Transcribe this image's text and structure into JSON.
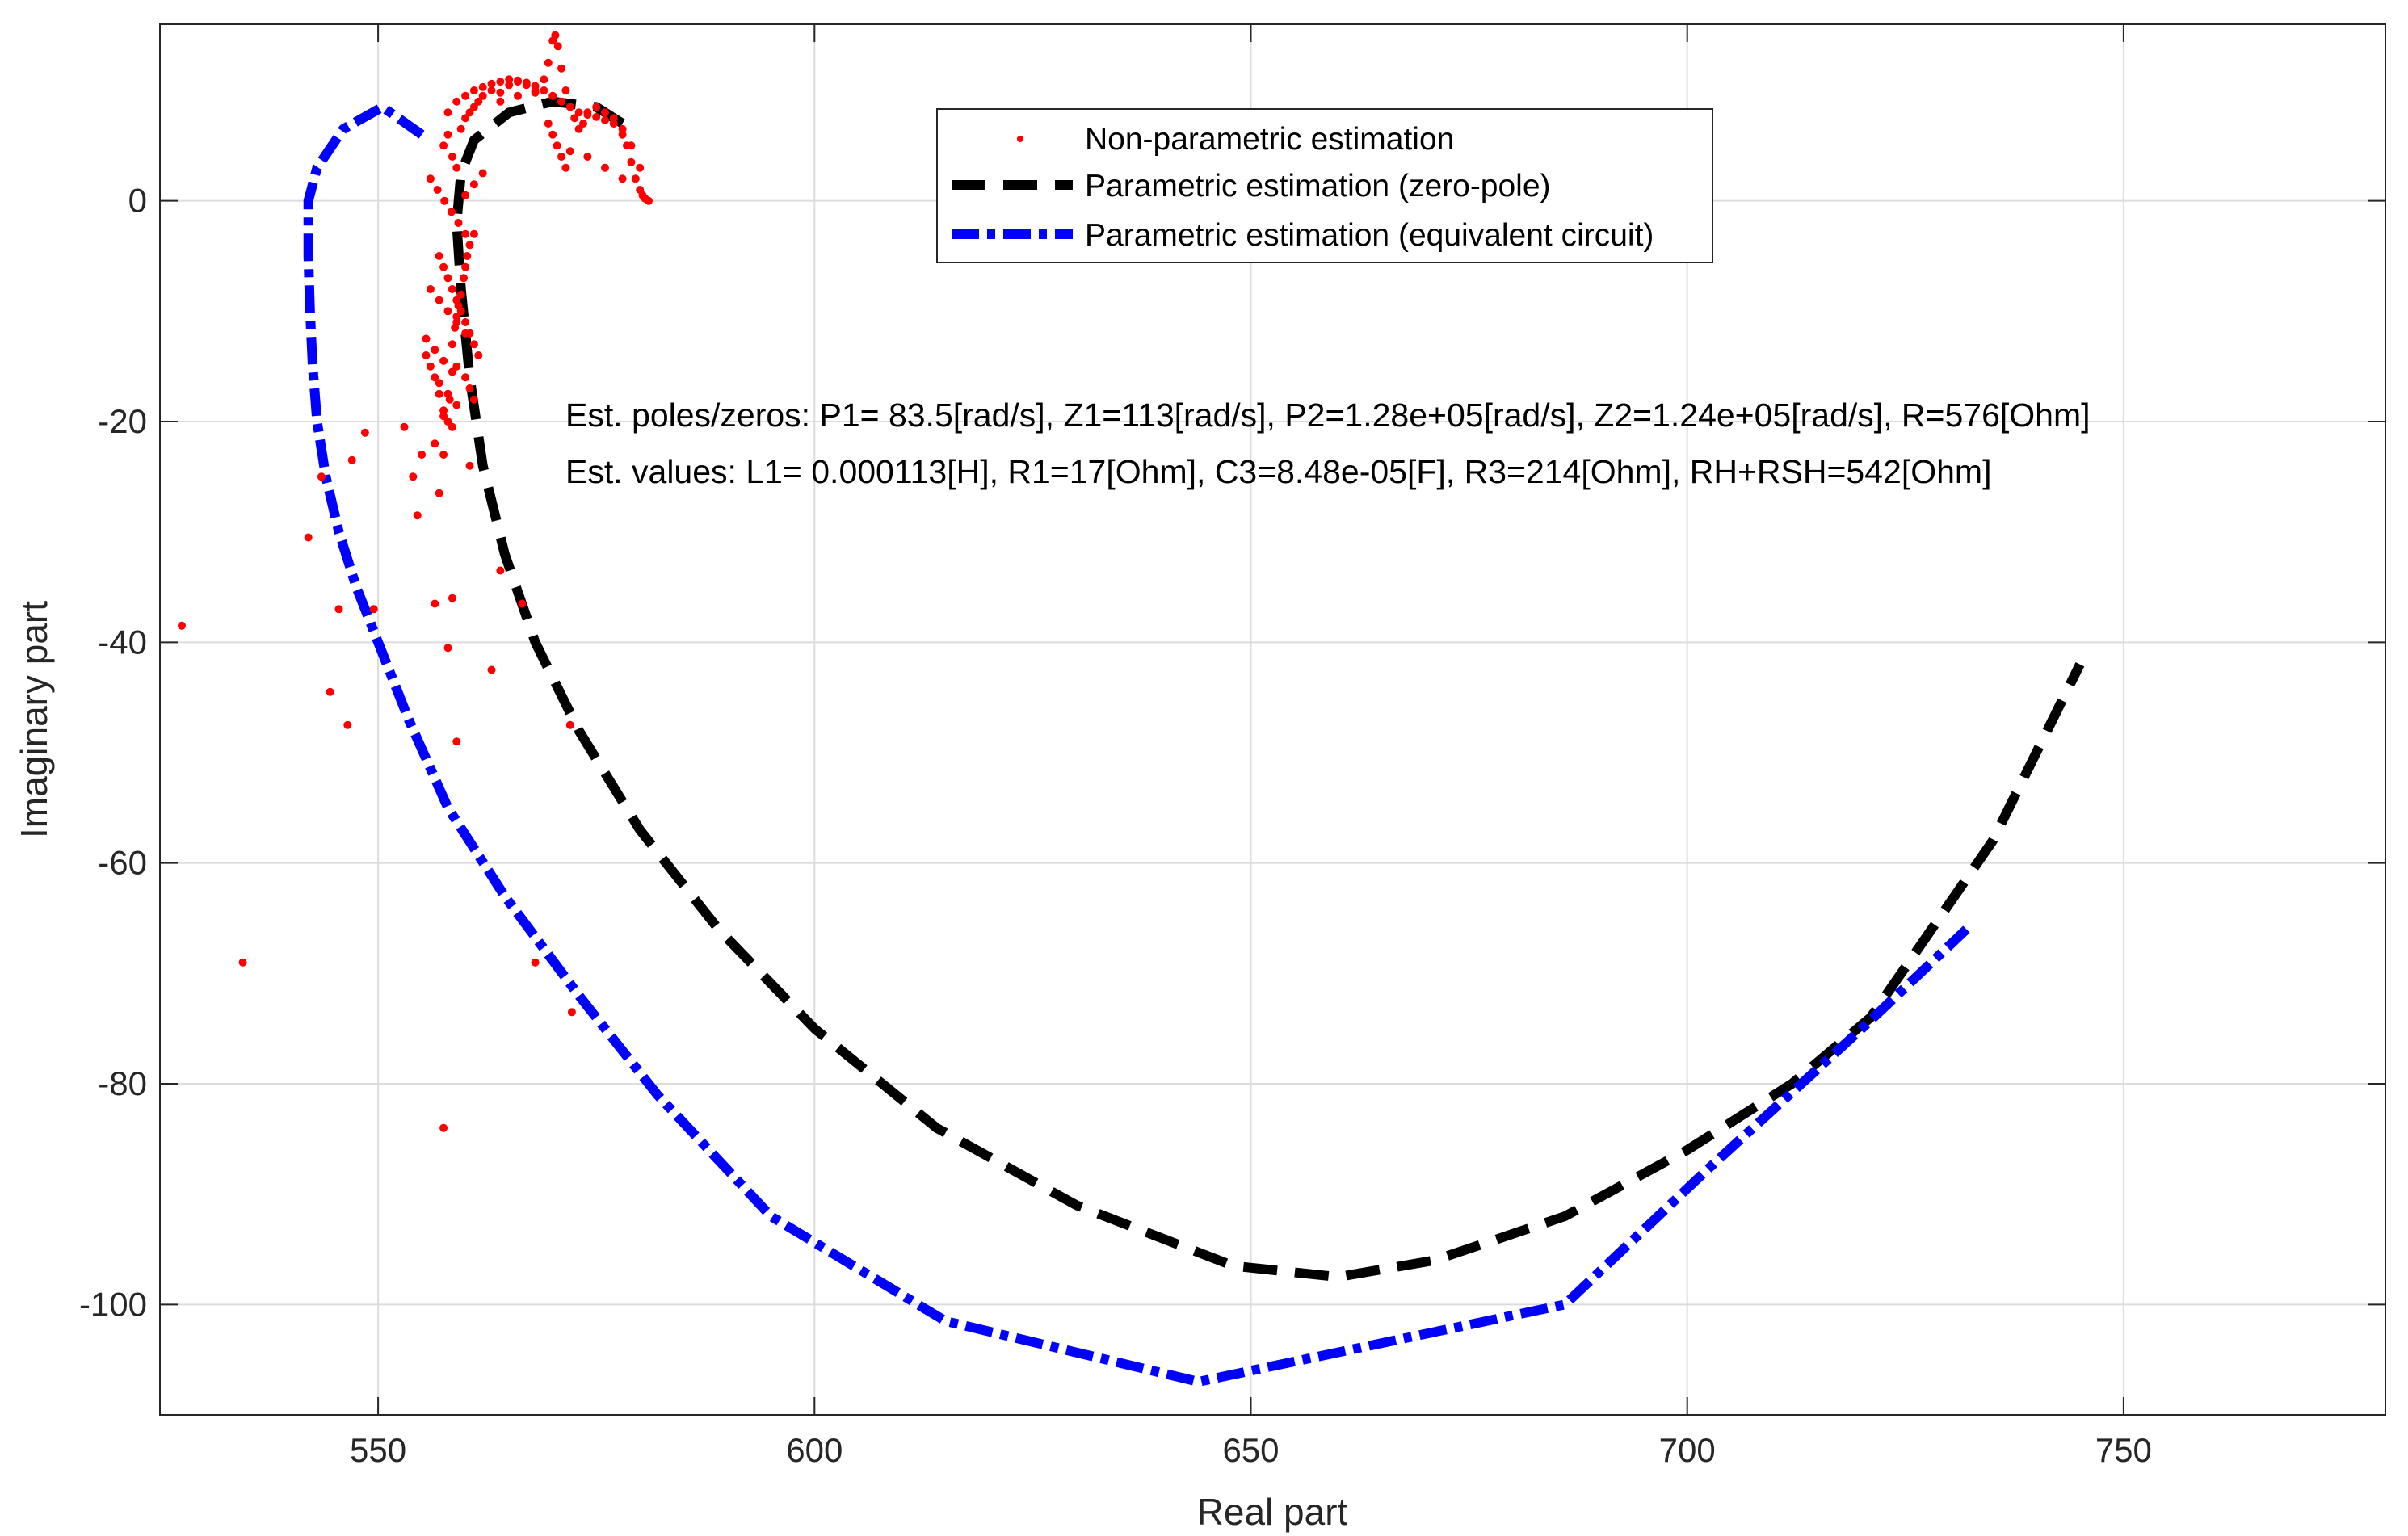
{
  "chart_data": {
    "type": "scatter",
    "title": "",
    "xlabel": "Real part",
    "ylabel": "Imaginary part",
    "xlim": [
      525,
      780
    ],
    "ylim": [
      -110,
      16
    ],
    "xticks": [
      550,
      600,
      650,
      700,
      750
    ],
    "yticks": [
      0,
      -20,
      -40,
      -60,
      -80,
      -100
    ],
    "grid": true,
    "legend_position": "top-center",
    "annotations": [
      "Est. poles/zeros: P1= 83.5[rad/s], Z1=113[rad/s], P2=1.28e+05[rad/s], Z2=1.24e+05[rad/s], R=576[Ohm]",
      "Est. values: L1= 0.000113[H], R1=17[Ohm], C3=8.48e-05[F], R3=214[Ohm], RH+RSH=542[Ohm]"
    ],
    "series": [
      {
        "name": "Non-parametric estimation",
        "style": "dots",
        "color": "#ff0000",
        "x": [
          527.5,
          534.5,
          544.5,
          546.5,
          547.0,
          548.5,
          542.0,
          543.5,
          545.5,
          549.5,
          553.0,
          554.0,
          555.0,
          554.5,
          556.5,
          557.0,
          557.5,
          558.0,
          558.5,
          559.0,
          560.5,
          563.0,
          564.0,
          566.5,
          568.0,
          572.0,
          572.2,
          555.5,
          556.0,
          556.5,
          557.0,
          557.5,
          558.0,
          558.2,
          558.5,
          558.8,
          559.0,
          559.2,
          559.5,
          559.8,
          560.0,
          560.2,
          560.5,
          561.0,
          557.5,
          558.0,
          558.5,
          559.0,
          559.5,
          560.0,
          560.5,
          561.0,
          561.5,
          562.0,
          563.0,
          564.0,
          565.0,
          566.0,
          567.0,
          568.0,
          569.0,
          569.5,
          570.0,
          570.3,
          570.6,
          571.0,
          571.5,
          572.0,
          572.5,
          573.0,
          573.5,
          574.0,
          575.0,
          576.0,
          577.0,
          578.0,
          578.5,
          579.0,
          579.5,
          580.0,
          580.3,
          580.6,
          581.0,
          556.0,
          556.8,
          557.6,
          558.4,
          559.2,
          560.0,
          558.0,
          559.0,
          560.0,
          561.0,
          562.0,
          563.0,
          564.0,
          565.0,
          566.0,
          567.0,
          568.0,
          569.0,
          570.0,
          571.0,
          572.0,
          573.0,
          574.0,
          575.0,
          576.0,
          577.0,
          578.0,
          579.0,
          580.0,
          557.0,
          557.5,
          558.0,
          558.5,
          559.0,
          559.5,
          560.0,
          560.5,
          561.0,
          561.5,
          559.0,
          560.0,
          560.5,
          561.0,
          571.0,
          570.5,
          570.0,
          571.5,
          572.0,
          569.5,
          556.0,
          557.0,
          558.0,
          559.0,
          560.0,
          555.5,
          556.5,
          557.5,
          558.5,
          557.0,
          558.0,
          559.0,
          557.5,
          558.5,
          556.5,
          557.5,
          560.0,
          561.0,
          562.0,
          564.0,
          566.0,
          568.0,
          574.0,
          576.0,
          578.0
        ],
        "y": [
          -38.5,
          -69.0,
          -44.5,
          -47.5,
          -23.5,
          -21.0,
          -30.5,
          -25.0,
          -37.0,
          -37.0,
          -20.5,
          -25.0,
          -23.0,
          -28.5,
          -36.5,
          -26.5,
          -84.0,
          -40.5,
          -36.0,
          -49.0,
          -24.0,
          -42.5,
          -33.5,
          -36.5,
          -69.0,
          -47.5,
          -73.5,
          -14.0,
          -15.0,
          -16.0,
          -17.5,
          -19.0,
          -20.0,
          -18.0,
          -13.0,
          -11.5,
          -10.5,
          -9.5,
          -8.5,
          -7.0,
          -6.0,
          -5.0,
          -4.0,
          -3.0,
          5.0,
          6.0,
          4.0,
          3.0,
          6.5,
          7.5,
          8.0,
          8.5,
          9.0,
          9.5,
          10.0,
          9.8,
          10.5,
          10.8,
          10.5,
          10.0,
          11.0,
          12.5,
          14.5,
          15.0,
          14.0,
          12.0,
          10.0,
          8.5,
          7.5,
          6.5,
          7.0,
          8.0,
          8.5,
          8.0,
          7.5,
          6.0,
          5.0,
          3.5,
          2.0,
          1.0,
          0.5,
          0.2,
          0.0,
          2.0,
          1.0,
          0.0,
          -1.0,
          -2.0,
          -3.0,
          8.0,
          9.0,
          9.5,
          10.0,
          10.3,
          10.6,
          10.8,
          11.0,
          10.9,
          10.7,
          10.4,
          10.0,
          9.5,
          9.0,
          8.5,
          8.0,
          7.8,
          7.6,
          7.3,
          7.0,
          6.5,
          5.0,
          3.0,
          -5.0,
          -6.0,
          -7.0,
          -8.0,
          -9.0,
          -10.0,
          -11.0,
          -12.0,
          -13.0,
          -14.0,
          -15.0,
          -16.0,
          -17.0,
          -18.0,
          4.0,
          5.0,
          6.0,
          3.0,
          4.5,
          7.0,
          -8.0,
          -9.0,
          -10.0,
          -11.0,
          -12.0,
          -12.5,
          -13.5,
          -14.5,
          -15.5,
          -16.5,
          -17.5,
          -18.5,
          -19.5,
          -20.5,
          -22.0,
          -23.0,
          0.5,
          1.5,
          2.5,
          9.0,
          9.5,
          9.8,
          4.0,
          3.0,
          2.0
        ]
      },
      {
        "name": "Parametric estimation (zero-pole)",
        "style": "dashed",
        "color": "#000000",
        "x": [
          578.0,
          575.0,
          570.0,
          565.0,
          561.0,
          559.5,
          559.0,
          559.5,
          560.5,
          562.0,
          564.5,
          568.0,
          573.0,
          580.0,
          589.0,
          600.0,
          614.0,
          630.0,
          648.0,
          660.0,
          671.0,
          686.0,
          700.0,
          712.0,
          721.0,
          728.0,
          735.0,
          740.0,
          745.0
        ],
        "y": [
          7.0,
          8.5,
          9.0,
          8.0,
          5.5,
          2.5,
          -2.0,
          -8.0,
          -16.0,
          -24.0,
          -32.0,
          -40.0,
          -48.0,
          -57.0,
          -66.0,
          -75.0,
          -84.0,
          -91.0,
          -96.5,
          -97.5,
          -96.0,
          -92.0,
          -86.0,
          -80.0,
          -74.0,
          -66.0,
          -58.0,
          -50.0,
          -42.0
        ]
      },
      {
        "name": "Parametric estimation (equivalent circuit)",
        "style": "dashdot",
        "color": "#0000ff",
        "x": [
          555.0,
          550.5,
          546.0,
          543.0,
          542.0,
          542.0,
          542.2,
          542.5,
          543.0,
          544.0,
          545.5,
          547.5,
          550.0,
          553.5,
          558.0,
          564.5,
          573.0,
          582.0,
          595.0,
          615.0,
          644.0,
          686.0,
          702.0,
          720.0,
          732.0
        ],
        "y": [
          6.0,
          8.5,
          6.5,
          3.0,
          0.0,
          -5.0,
          -10.0,
          -15.0,
          -20.0,
          -25.0,
          -30.0,
          -35.0,
          -40.0,
          -47.0,
          -55.0,
          -63.0,
          -72.0,
          -81.0,
          -92.0,
          -101.5,
          -107.0,
          -100.0,
          -88.0,
          -75.0,
          -66.0
        ]
      }
    ]
  }
}
